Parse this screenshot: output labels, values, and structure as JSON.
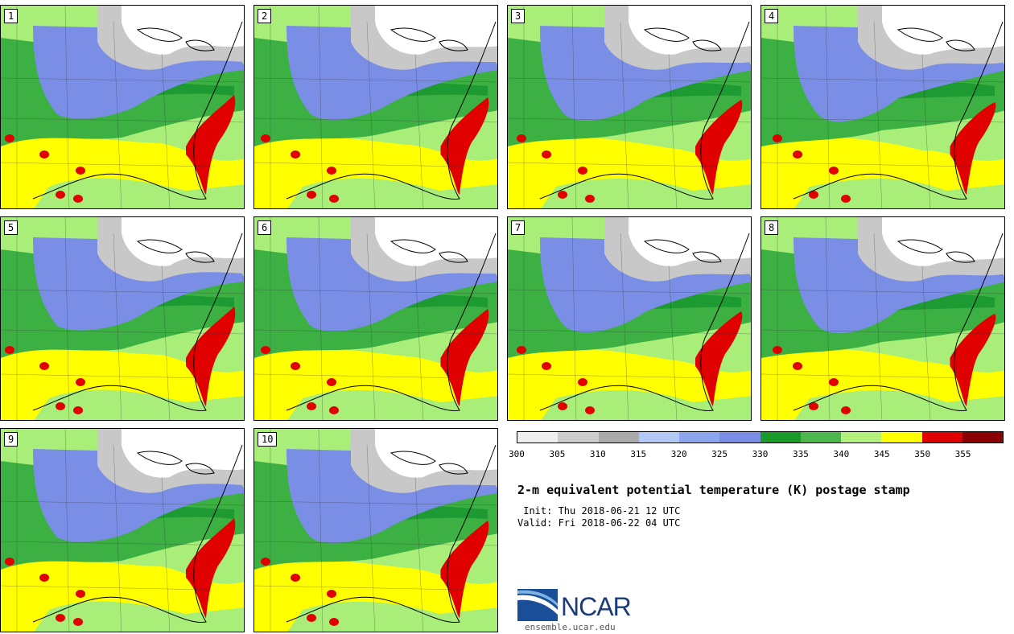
{
  "members": [
    "1",
    "2",
    "3",
    "4",
    "5",
    "6",
    "7",
    "8",
    "9",
    "10"
  ],
  "colorbar": {
    "colors": [
      "#eeeeee",
      "#cccccc",
      "#aaaaaa",
      "#b4c8f5",
      "#8ca5ee",
      "#7a8ee6",
      "#1a9a2a",
      "#4cb84c",
      "#b4f07c",
      "#ffff00",
      "#e00000",
      "#8b0000"
    ],
    "ticks": [
      "300",
      "305",
      "310",
      "315",
      "320",
      "325",
      "330",
      "335",
      "340",
      "345",
      "350",
      "355"
    ]
  },
  "title": "2-m equivalent potential temperature (K) postage stamp",
  "init_line": " Init: Thu 2018-06-21 12 UTC",
  "valid_line": "Valid: Fri 2018-06-22 04 UTC",
  "logo": {
    "word": "NCAR",
    "url": "ensemble.ucar.edu"
  },
  "colors": {
    "cold_white": "#ffffff",
    "gray": "#c8c8c8",
    "blue": "#7a8ee6",
    "dark_green": "#1e9a32",
    "green": "#3cb043",
    "light_green": "#a8ee78",
    "yellow": "#ffff00",
    "red": "#e00000"
  }
}
